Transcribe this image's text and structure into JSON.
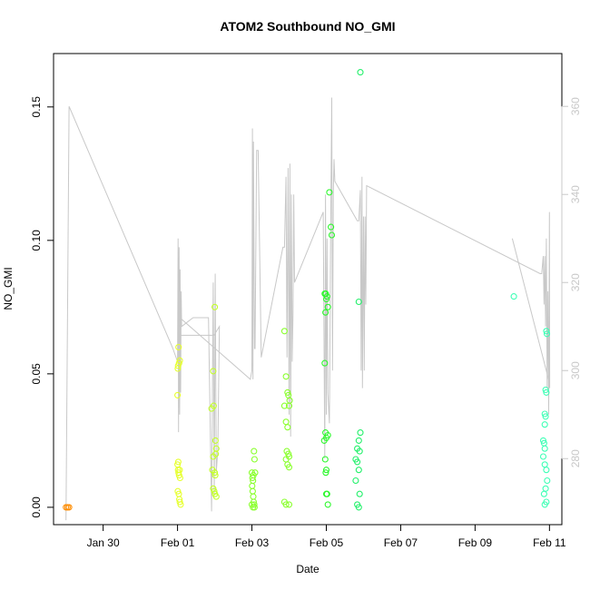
{
  "chart_data": {
    "type": "scatter",
    "title": "ATOM2 Southbound NO_GMI",
    "xlabel": "Date",
    "ylabel": "NO_GMI",
    "xlim": [
      "2016-01-28T16:00",
      "2016-02-11T08:00"
    ],
    "ylim": [
      -0.0065,
      0.17
    ],
    "y2lim": [
      265,
      372
    ],
    "x_ticks": [
      {
        "date": "2016-01-30",
        "label": "Jan 30"
      },
      {
        "date": "2016-02-01",
        "label": "Feb 01"
      },
      {
        "date": "2016-02-03",
        "label": "Feb 03"
      },
      {
        "date": "2016-02-05",
        "label": "Feb 05"
      },
      {
        "date": "2016-02-07",
        "label": "Feb 07"
      },
      {
        "date": "2016-02-09",
        "label": "Feb 09"
      },
      {
        "date": "2016-02-11",
        "label": "Feb 11"
      }
    ],
    "y_ticks": [
      "0.00",
      "0.05",
      "0.10",
      "0.15"
    ],
    "y2_ticks": [
      "280",
      "300",
      "320",
      "340",
      "360"
    ],
    "grid": false,
    "colors": {
      "line": "#c8c8c8",
      "axis": "#000000",
      "right_axis": "#c8c8c8",
      "orange": "#ff8c00",
      "yellow": "#e6ff2d",
      "yellow_green": "#c4ff2b",
      "lime": "#8aff2e",
      "green": "#2cf82c",
      "green2": "#22f06a",
      "aqua": "#3dffb5"
    },
    "line_series": {
      "name": "",
      "points": [
        [
          "2016-01-29T00:00",
          266
        ],
        [
          "2016-01-29T02:00",
          360
        ],
        [
          "2016-01-31T21:00",
          305
        ],
        [
          "2016-02-01T00:00",
          302
        ],
        [
          "2016-02-01T00:20",
          330
        ],
        [
          "2016-02-01T00:40",
          286
        ],
        [
          "2016-02-01T01:00",
          328
        ],
        [
          "2016-02-01T01:20",
          290
        ],
        [
          "2016-02-01T01:40",
          323
        ],
        [
          "2016-02-01T02:00",
          295
        ],
        [
          "2016-02-01T02:20",
          318
        ],
        [
          "2016-02-01T02:40",
          310
        ],
        [
          "2016-02-01T10:00",
          312
        ],
        [
          "2016-02-01T20:00",
          312
        ],
        [
          "2016-02-01T22:00",
          268
        ],
        [
          "2016-02-01T23:00",
          320
        ],
        [
          "2016-02-01T23:40",
          272
        ],
        [
          "2016-02-02T00:20",
          322
        ],
        [
          "2016-02-02T01:00",
          277
        ],
        [
          "2016-02-02T02:00",
          282
        ],
        [
          "2016-02-02T03:00",
          310
        ],
        [
          "2016-02-01T23:30",
          308
        ],
        [
          "2016-02-01T01:00",
          308
        ],
        [
          "2016-02-01T01:30",
          312
        ],
        [
          "2016-02-02T23:00",
          298
        ],
        [
          "2016-02-03T00:00",
          300
        ],
        [
          "2016-02-03T00:20",
          355
        ],
        [
          "2016-02-03T00:40",
          298
        ],
        [
          "2016-02-03T01:00",
          352
        ],
        [
          "2016-02-03T01:40",
          305
        ],
        [
          "2016-02-03T02:00",
          305
        ],
        [
          "2016-02-03T03:00",
          350
        ],
        [
          "2016-02-03T04:00",
          350
        ],
        [
          "2016-02-03T06:00",
          303
        ],
        [
          "2016-02-03T20:00",
          328
        ],
        [
          "2016-02-03T21:00",
          328
        ],
        [
          "2016-02-03T22:00",
          344
        ],
        [
          "2016-02-03T22:40",
          303
        ],
        [
          "2016-02-03T23:20",
          346
        ],
        [
          "2016-02-04T00:00",
          290
        ],
        [
          "2016-02-04T00:30",
          347
        ],
        [
          "2016-02-04T01:00",
          285
        ],
        [
          "2016-02-04T01:30",
          340
        ],
        [
          "2016-02-04T02:00",
          302
        ],
        [
          "2016-02-04T02:30",
          313
        ],
        [
          "2016-02-04T03:00",
          340
        ],
        [
          "2016-02-04T03:30",
          320
        ],
        [
          "2016-02-04T22:00",
          336
        ],
        [
          "2016-02-04T23:00",
          280
        ],
        [
          "2016-02-04T23:30",
          340
        ],
        [
          "2016-02-05T00:00",
          290
        ],
        [
          "2016-02-05T00:30",
          330
        ],
        [
          "2016-02-05T01:00",
          295
        ],
        [
          "2016-02-05T02:00",
          288
        ],
        [
          "2016-02-05T03:00",
          340
        ],
        [
          "2016-02-05T03:30",
          362
        ],
        [
          "2016-02-05T04:00",
          300
        ],
        [
          "2016-02-05T04:30",
          340
        ],
        [
          "2016-02-05T05:00",
          348
        ],
        [
          "2016-02-05T05:30",
          343
        ],
        [
          "2016-02-05T20:00",
          334
        ],
        [
          "2016-02-05T21:00",
          334
        ],
        [
          "2016-02-05T22:00",
          341
        ],
        [
          "2016-02-05T22:30",
          300
        ],
        [
          "2016-02-05T23:00",
          344
        ],
        [
          "2016-02-05T23:20",
          296
        ],
        [
          "2016-02-06T00:00",
          335
        ],
        [
          "2016-02-06T00:30",
          300
        ],
        [
          "2016-02-06T01:00",
          335
        ],
        [
          "2016-02-06T01:30",
          315
        ],
        [
          "2016-02-06T02:00",
          342
        ],
        [
          "2016-02-10T18:00",
          322
        ],
        [
          "2016-02-10T19:00",
          322
        ],
        [
          "2016-02-10T20:00",
          326
        ],
        [
          "2016-02-10T20:30",
          315
        ],
        [
          "2016-02-10T21:00",
          326
        ],
        [
          "2016-02-10T21:30",
          310
        ],
        [
          "2016-02-10T22:00",
          330
        ],
        [
          "2016-02-10T22:30",
          296
        ],
        [
          "2016-02-10T23:00",
          318
        ],
        [
          "2016-02-10T23:30",
          290
        ],
        [
          "2016-02-11T00:00",
          336
        ],
        [
          "2016-02-11T00:10",
          296
        ]
      ],
      "extra_segments": [
        [
          [
            "2016-02-10T00:00",
            330
          ],
          [
            "2016-02-11T00:10",
            297
          ]
        ]
      ]
    },
    "scatter_series": [
      {
        "name": "",
        "color_key": "orange",
        "points": [
          [
            "2016-01-29T00:00",
            0.0
          ],
          [
            "2016-01-29T01:00",
            0.0
          ],
          [
            "2016-01-29T02:00",
            0.0
          ]
        ]
      },
      {
        "name": "",
        "color_key": "yellow",
        "points": [
          [
            "2016-02-01T00:00",
            0.042
          ],
          [
            "2016-02-01T00:10",
            0.052
          ],
          [
            "2016-02-01T00:20",
            0.053
          ],
          [
            "2016-02-01T00:40",
            0.06
          ],
          [
            "2016-02-01T01:00",
            0.054
          ],
          [
            "2016-02-01T01:30",
            0.055
          ],
          [
            "2016-02-01T00:00",
            0.016
          ],
          [
            "2016-02-01T00:20",
            0.014
          ],
          [
            "2016-02-01T00:40",
            0.013
          ],
          [
            "2016-02-01T01:00",
            0.012
          ],
          [
            "2016-02-01T01:20",
            0.014
          ],
          [
            "2016-02-01T01:40",
            0.011
          ],
          [
            "2016-02-01T00:10",
            0.006
          ],
          [
            "2016-02-01T00:50",
            0.005
          ],
          [
            "2016-02-01T01:10",
            0.003
          ],
          [
            "2016-02-01T01:30",
            0.002
          ],
          [
            "2016-02-01T02:00",
            0.001
          ],
          [
            "2016-02-01T00:30",
            0.017
          ]
        ]
      },
      {
        "name": "",
        "color_key": "yellow_green",
        "points": [
          [
            "2016-02-01T22:00",
            0.037
          ],
          [
            "2016-02-01T23:00",
            0.051
          ],
          [
            "2016-02-02T00:00",
            0.075
          ],
          [
            "2016-02-02T00:30",
            0.025
          ],
          [
            "2016-02-02T01:00",
            0.022
          ],
          [
            "2016-02-02T00:40",
            0.02
          ],
          [
            "2016-02-01T23:00",
            0.019
          ],
          [
            "2016-02-01T22:30",
            0.014
          ],
          [
            "2016-02-02T00:00",
            0.013
          ],
          [
            "2016-02-02T00:20",
            0.012
          ],
          [
            "2016-02-01T23:00",
            0.007
          ],
          [
            "2016-02-01T23:40",
            0.006
          ],
          [
            "2016-02-02T00:10",
            0.005
          ],
          [
            "2016-02-02T01:00",
            0.004
          ],
          [
            "2016-02-01T23:20",
            0.038
          ]
        ]
      },
      {
        "name": "",
        "color_key": "lime",
        "points": [
          [
            "2016-02-03T00:00",
            0.013
          ],
          [
            "2016-02-03T00:20",
            0.011
          ],
          [
            "2016-02-03T00:40",
            0.01
          ],
          [
            "2016-02-03T01:00",
            0.012
          ],
          [
            "2016-02-03T01:20",
            0.021
          ],
          [
            "2016-02-03T01:40",
            0.018
          ],
          [
            "2016-02-03T02:00",
            0.013
          ],
          [
            "2016-02-03T00:10",
            0.008
          ],
          [
            "2016-02-03T00:30",
            0.006
          ],
          [
            "2016-02-03T00:50",
            0.004
          ],
          [
            "2016-02-03T01:10",
            0.002
          ],
          [
            "2016-02-03T01:30",
            0.001
          ],
          [
            "2016-02-03T00:00",
            0.001
          ],
          [
            "2016-02-03T00:40",
            0.0
          ],
          [
            "2016-02-03T01:40",
            0.0
          ]
        ]
      },
      {
        "name": "",
        "color_key": "lime",
        "points": [
          [
            "2016-02-03T21:00",
            0.066
          ],
          [
            "2016-02-03T22:00",
            0.049
          ],
          [
            "2016-02-03T23:00",
            0.043
          ],
          [
            "2016-02-03T23:30",
            0.042
          ],
          [
            "2016-02-04T00:00",
            0.038
          ],
          [
            "2016-02-04T00:20",
            0.04
          ],
          [
            "2016-02-03T21:00",
            0.038
          ],
          [
            "2016-02-03T22:00",
            0.032
          ],
          [
            "2016-02-03T23:00",
            0.03
          ],
          [
            "2016-02-03T22:30",
            0.021
          ],
          [
            "2016-02-03T23:30",
            0.02
          ],
          [
            "2016-02-04T00:00",
            0.019
          ],
          [
            "2016-02-03T22:00",
            0.018
          ],
          [
            "2016-02-03T23:00",
            0.016
          ],
          [
            "2016-02-04T00:00",
            0.015
          ],
          [
            "2016-02-03T21:00",
            0.002
          ],
          [
            "2016-02-03T22:00",
            0.001
          ],
          [
            "2016-02-04T00:00",
            0.001
          ]
        ]
      },
      {
        "name": "",
        "color_key": "green",
        "points": [
          [
            "2016-02-04T23:00",
            0.08
          ],
          [
            "2016-02-04T23:40",
            0.08
          ],
          [
            "2016-02-05T00:00",
            0.078
          ],
          [
            "2016-02-05T00:30",
            0.079
          ],
          [
            "2016-02-05T01:00",
            0.075
          ],
          [
            "2016-02-04T23:30",
            0.073
          ],
          [
            "2016-02-05T02:00",
            0.118
          ],
          [
            "2016-02-05T03:00",
            0.105
          ],
          [
            "2016-02-05T03:30",
            0.102
          ],
          [
            "2016-02-04T23:00",
            0.054
          ],
          [
            "2016-02-04T23:30",
            0.028
          ],
          [
            "2016-02-05T00:00",
            0.026
          ],
          [
            "2016-02-04T22:40",
            0.025
          ],
          [
            "2016-02-05T01:00",
            0.027
          ],
          [
            "2016-02-04T23:20",
            0.018
          ],
          [
            "2016-02-05T00:00",
            0.014
          ],
          [
            "2016-02-04T23:40",
            0.013
          ],
          [
            "2016-02-05T00:00",
            0.005
          ],
          [
            "2016-02-05T00:30",
            0.005
          ],
          [
            "2016-02-05T01:00",
            0.001
          ]
        ]
      },
      {
        "name": "",
        "color_key": "green2",
        "points": [
          [
            "2016-02-05T22:00",
            0.163
          ],
          [
            "2016-02-05T21:00",
            0.077
          ],
          [
            "2016-02-05T22:00",
            0.028
          ],
          [
            "2016-02-05T21:00",
            0.025
          ],
          [
            "2016-02-05T20:00",
            0.022
          ],
          [
            "2016-02-05T21:30",
            0.021
          ],
          [
            "2016-02-05T19:00",
            0.018
          ],
          [
            "2016-02-05T20:00",
            0.017
          ],
          [
            "2016-02-05T21:00",
            0.014
          ],
          [
            "2016-02-05T19:00",
            0.01
          ],
          [
            "2016-02-05T21:30",
            0.005
          ],
          [
            "2016-02-05T20:00",
            0.001
          ],
          [
            "2016-02-05T21:00",
            0.0
          ]
        ]
      },
      {
        "name": "",
        "color_key": "aqua",
        "points": [
          [
            "2016-02-10T01:00",
            0.079
          ],
          [
            "2016-02-10T22:00",
            0.066
          ],
          [
            "2016-02-10T22:20",
            0.065
          ],
          [
            "2016-02-10T21:30",
            0.044
          ],
          [
            "2016-02-10T22:00",
            0.043
          ],
          [
            "2016-02-10T21:00",
            0.035
          ],
          [
            "2016-02-10T21:30",
            0.034
          ],
          [
            "2016-02-10T21:00",
            0.031
          ],
          [
            "2016-02-10T20:00",
            0.025
          ],
          [
            "2016-02-10T20:30",
            0.024
          ],
          [
            "2016-02-10T21:00",
            0.022
          ],
          [
            "2016-02-10T20:00",
            0.019
          ],
          [
            "2016-02-10T21:00",
            0.016
          ],
          [
            "2016-02-10T22:00",
            0.014
          ],
          [
            "2016-02-10T22:30",
            0.01
          ],
          [
            "2016-02-10T21:30",
            0.007
          ],
          [
            "2016-02-10T20:30",
            0.005
          ],
          [
            "2016-02-10T22:00",
            0.002
          ],
          [
            "2016-02-10T21:00",
            0.001
          ]
        ]
      }
    ]
  }
}
